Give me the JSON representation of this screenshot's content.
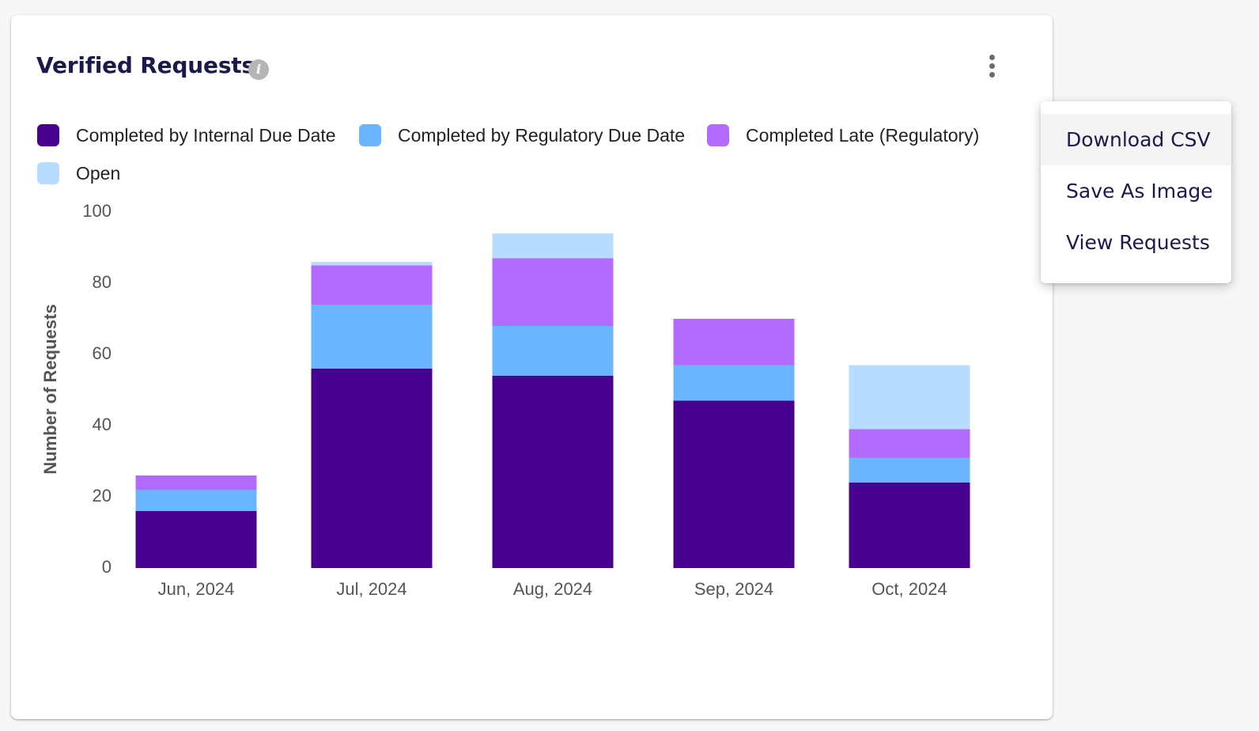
{
  "card": {
    "title": "Verified Requests",
    "info_icon": "info-icon",
    "menu_icon": "kebab-icon"
  },
  "menu": {
    "items": [
      {
        "label": "Download CSV",
        "highlighted": true
      },
      {
        "label": "Save As Image",
        "highlighted": false
      },
      {
        "label": "View Requests",
        "highlighted": false
      }
    ]
  },
  "chart_data": {
    "type": "bar",
    "stacked": true,
    "title": "Verified Requests",
    "xlabel": "",
    "ylabel": "Number of Requests",
    "ylim": [
      0,
      100
    ],
    "yticks": [
      0,
      20,
      40,
      60,
      80,
      100
    ],
    "grid": false,
    "legend_position": "top",
    "categories": [
      "Jun, 2024",
      "Jul, 2024",
      "Aug, 2024",
      "Sep, 2024",
      "Oct, 2024"
    ],
    "series": [
      {
        "name": "Completed by Internal Due Date",
        "color": "#48008f",
        "values": [
          16,
          56,
          54,
          47,
          24
        ]
      },
      {
        "name": "Completed by Regulatory Due Date",
        "color": "#6bb5ff",
        "values": [
          6,
          18,
          14,
          10,
          7
        ]
      },
      {
        "name": "Completed Late (Regulatory)",
        "color": "#b36bff",
        "values": [
          4,
          11,
          19,
          13,
          8
        ]
      },
      {
        "name": "Open",
        "color": "#b8dcff",
        "values": [
          0,
          1,
          7,
          0,
          18
        ]
      }
    ]
  }
}
